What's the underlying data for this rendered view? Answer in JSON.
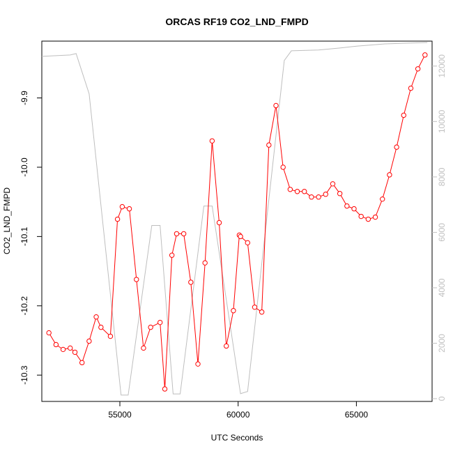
{
  "chart_data": {
    "type": "line",
    "title": "ORCAS RF19 CO2_LND_FMPD",
    "xlabel": "UTC Seconds",
    "ylabel": "CO2_LND_FMPD",
    "y2label": "",
    "xlim": [
      51700,
      68200
    ],
    "ylim": [
      -10.338,
      -9.818
    ],
    "y2lim": [
      -100,
      12900
    ],
    "x_ticks": [
      55000,
      60000,
      65000
    ],
    "y_ticks": [
      -10.3,
      -10.2,
      -10.1,
      -10.0,
      -9.9
    ],
    "y2_ticks": [
      0,
      2000,
      4000,
      6000,
      8000,
      10000,
      12000
    ],
    "colors": {
      "primary": "#ff0000",
      "secondary": "#bebebe",
      "axis": "#000000",
      "right_axis": "#c0c0c0"
    },
    "series": [
      {
        "axis": "left",
        "markers": "open-circle",
        "x": [
          52000,
          52300,
          52600,
          52900,
          53100,
          53400,
          53700,
          54000,
          54200,
          54600,
          54900,
          55100,
          55400,
          55700,
          56000,
          56300,
          56700,
          56900,
          57200,
          57400,
          57700,
          58000,
          58300,
          58600,
          58900,
          59200,
          59500,
          59800,
          60050,
          60100,
          60400,
          60700,
          61000,
          61300,
          61600,
          61900,
          62200,
          62500,
          62800,
          63100,
          63400,
          63700,
          64000,
          64300,
          64600,
          64900,
          65200,
          65500,
          65800,
          66100,
          66400,
          66700,
          67000,
          67300,
          67600,
          67900
        ],
        "y": [
          -10.239,
          -10.256,
          -10.263,
          -10.261,
          -10.267,
          -10.282,
          -10.251,
          -10.216,
          -10.231,
          -10.244,
          -10.075,
          -10.057,
          -10.06,
          -10.162,
          -10.261,
          -10.231,
          -10.224,
          -10.32,
          -10.127,
          -10.096,
          -10.096,
          -10.166,
          -10.284,
          -10.138,
          -9.962,
          -10.08,
          -10.258,
          -10.207,
          -10.098,
          -10.1,
          -10.109,
          -10.202,
          -10.209,
          -9.968,
          -9.911,
          -10.0,
          -10.032,
          -10.035,
          -10.035,
          -10.043,
          -10.043,
          -10.039,
          -10.024,
          -10.038,
          -10.056,
          -10.06,
          -10.071,
          -10.075,
          -10.072,
          -10.046,
          -10.011,
          -9.971,
          -9.925,
          -9.886,
          -9.858,
          -9.838
        ]
      },
      {
        "axis": "right",
        "x": [
          51700,
          52900,
          53150,
          53700,
          55050,
          55350,
          56350,
          56700,
          57250,
          57550,
          58550,
          58900,
          60100,
          60400,
          61950,
          62250,
          63400,
          64300,
          65000,
          66200,
          68000
        ],
        "y": [
          12350,
          12400,
          12450,
          11000,
          130,
          130,
          6250,
          6250,
          170,
          170,
          6950,
          6950,
          180,
          260,
          12200,
          12550,
          12580,
          12650,
          12720,
          12800,
          12850
        ]
      }
    ]
  }
}
